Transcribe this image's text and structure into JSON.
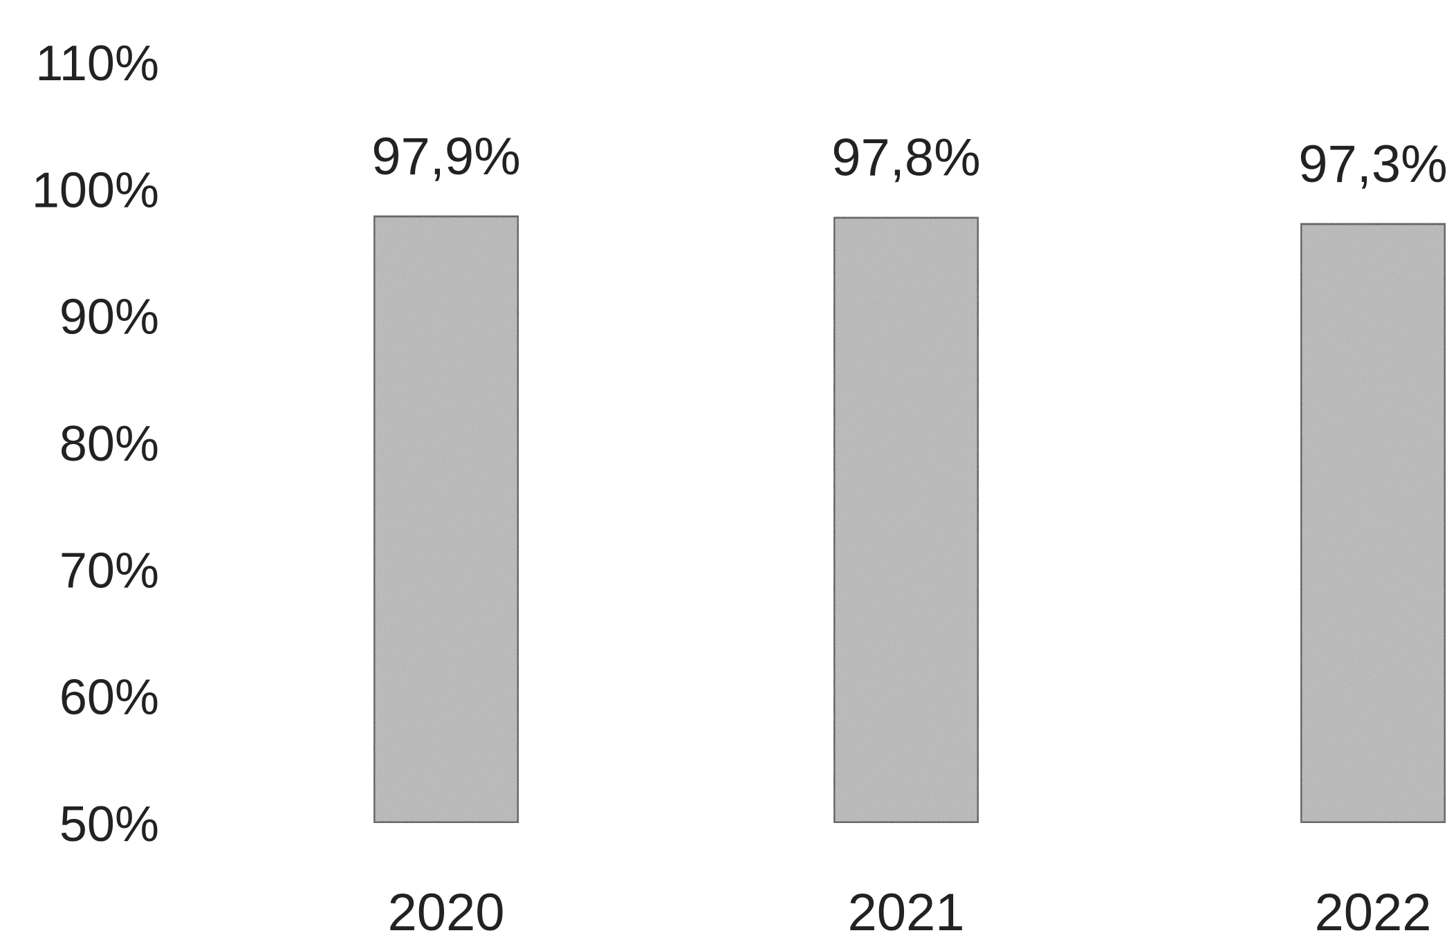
{
  "chart_data": {
    "type": "bar",
    "categories": [
      "2020",
      "2021",
      "2022"
    ],
    "values": [
      97.9,
      97.8,
      97.3
    ],
    "data_labels": [
      "97,9%",
      "97,8%",
      "97,3%"
    ],
    "title": "",
    "xlabel": "",
    "ylabel": "",
    "ylim": [
      50,
      110
    ],
    "y_ticks": [
      110,
      100,
      90,
      80,
      70,
      60,
      50
    ],
    "y_tick_labels": [
      "110%",
      "100%",
      "90%",
      "80%",
      "70%",
      "60%",
      "50%"
    ],
    "grid": false,
    "legend": "none",
    "colors": {
      "bar_fill": "#b9b9b9",
      "bar_stroke": "#1a1a1a"
    }
  }
}
